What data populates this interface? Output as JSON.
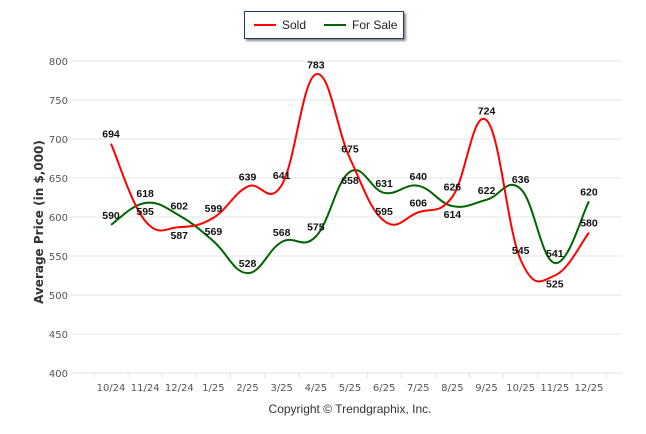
{
  "chart_data": {
    "type": "line",
    "title": "",
    "xlabel": "",
    "ylabel": "Average Price (in $,000)",
    "ylim": [
      400,
      800
    ],
    "yticks": [
      400,
      450,
      500,
      550,
      600,
      650,
      700,
      750,
      800
    ],
    "grid": true,
    "legend_position": "top-center",
    "categories": [
      "10/24",
      "11/24",
      "12/24",
      "1/25",
      "2/25",
      "3/25",
      "4/25",
      "5/25",
      "6/25",
      "7/25",
      "8/25",
      "9/25",
      "10/25",
      "11/25",
      "12/25"
    ],
    "series": [
      {
        "name": "Sold",
        "color": "#ff0000",
        "values": [
          694,
          595,
          587,
          599,
          639,
          641,
          783,
          675,
          595,
          606,
          626,
          724,
          545,
          525,
          580
        ]
      },
      {
        "name": "For Sale",
        "color": "#006400",
        "values": [
          590,
          618,
          602,
          569,
          528,
          568,
          575,
          658,
          631,
          640,
          614,
          622,
          636,
          541,
          620
        ]
      }
    ],
    "footer": "Copyright © Trendgraphix, Inc."
  }
}
